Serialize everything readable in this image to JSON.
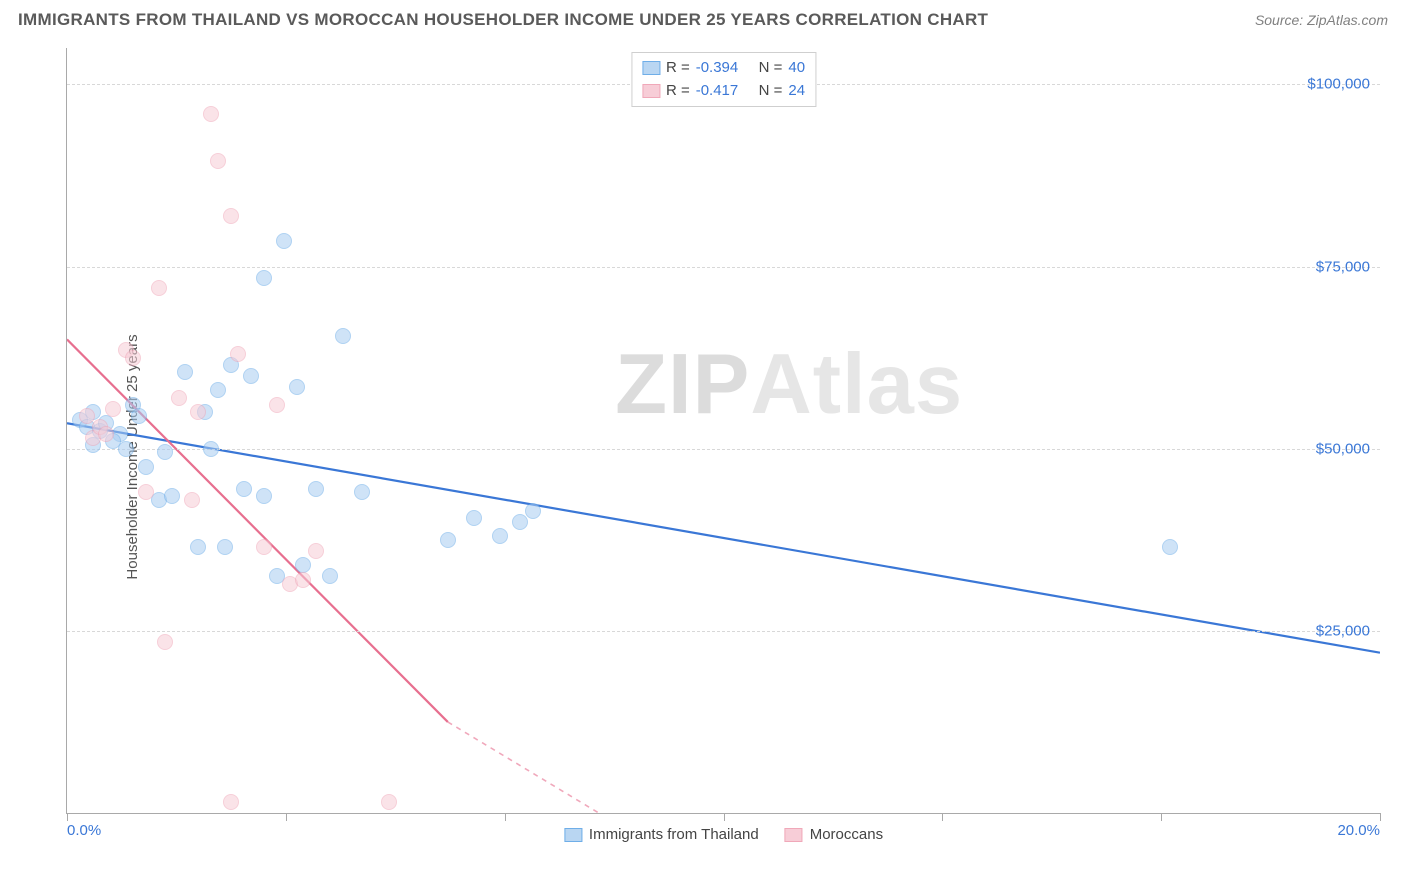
{
  "title": "IMMIGRANTS FROM THAILAND VS MOROCCAN HOUSEHOLDER INCOME UNDER 25 YEARS CORRELATION CHART",
  "source_label": "Source: ",
  "source_name": "ZipAtlas.com",
  "y_axis_label": "Householder Income Under 25 years",
  "watermark_a": "ZIP",
  "watermark_b": "Atlas",
  "chart": {
    "type": "scatter",
    "xlim": [
      0,
      20
    ],
    "ylim": [
      0,
      105000
    ],
    "y_ticks": [
      25000,
      50000,
      75000,
      100000
    ],
    "y_tick_labels": [
      "$25,000",
      "$50,000",
      "$75,000",
      "$100,000"
    ],
    "x_tick_positions": [
      0,
      3.33,
      6.67,
      10,
      13.33,
      16.67,
      20
    ],
    "x_min_label": "0.0%",
    "x_max_label": "20.0%",
    "grid_color": "#d8d8d8",
    "axis_color": "#a9a9a9",
    "background": "#ffffff",
    "series": [
      {
        "name": "Immigrants from Thailand",
        "color_fill": "#a9cdf2",
        "color_stroke": "#3a77d6",
        "r": -0.394,
        "n": 40,
        "trend": {
          "x1": 0,
          "y1": 53500,
          "x2": 20,
          "y2": 22000
        },
        "points": [
          [
            0.2,
            54000
          ],
          [
            0.3,
            53000
          ],
          [
            0.4,
            55000
          ],
          [
            0.5,
            52500
          ],
          [
            0.6,
            53500
          ],
          [
            0.4,
            50500
          ],
          [
            0.8,
            52000
          ],
          [
            0.9,
            50000
          ],
          [
            1.2,
            47500
          ],
          [
            1.0,
            56000
          ],
          [
            1.4,
            43000
          ],
          [
            1.6,
            43500
          ],
          [
            1.8,
            60500
          ],
          [
            2.0,
            36500
          ],
          [
            2.2,
            50000
          ],
          [
            2.3,
            58000
          ],
          [
            2.4,
            36500
          ],
          [
            2.5,
            61500
          ],
          [
            2.7,
            44500
          ],
          [
            2.8,
            60000
          ],
          [
            3.0,
            73500
          ],
          [
            3.0,
            43500
          ],
          [
            3.2,
            32500
          ],
          [
            3.3,
            78500
          ],
          [
            3.5,
            58500
          ],
          [
            3.6,
            34000
          ],
          [
            3.8,
            44500
          ],
          [
            4.0,
            32500
          ],
          [
            4.2,
            65500
          ],
          [
            4.5,
            44000
          ],
          [
            5.8,
            37500
          ],
          [
            6.2,
            40500
          ],
          [
            6.6,
            38000
          ],
          [
            6.9,
            40000
          ],
          [
            7.1,
            41500
          ],
          [
            16.8,
            36500
          ],
          [
            1.1,
            54500
          ],
          [
            0.7,
            51000
          ],
          [
            1.5,
            49500
          ],
          [
            2.1,
            55000
          ]
        ]
      },
      {
        "name": "Moroccans",
        "color_fill": "#f7cdd7",
        "color_stroke": "#e76f8f",
        "r": -0.417,
        "n": 24,
        "trend": {
          "x1": 0,
          "y1": 65000,
          "x2": 5.8,
          "y2": 12500
        },
        "trend_ext": {
          "x1": 5.8,
          "y1": 12500,
          "x2": 8.1,
          "y2": 0
        },
        "points": [
          [
            0.3,
            54500
          ],
          [
            0.4,
            51500
          ],
          [
            0.5,
            53000
          ],
          [
            0.7,
            55500
          ],
          [
            0.9,
            63500
          ],
          [
            1.0,
            62500
          ],
          [
            1.2,
            44000
          ],
          [
            1.4,
            72000
          ],
          [
            1.5,
            23500
          ],
          [
            1.7,
            57000
          ],
          [
            1.9,
            43000
          ],
          [
            2.0,
            55000
          ],
          [
            2.2,
            96000
          ],
          [
            2.3,
            89500
          ],
          [
            2.5,
            82000
          ],
          [
            2.5,
            1500
          ],
          [
            2.6,
            63000
          ],
          [
            3.0,
            36500
          ],
          [
            3.2,
            56000
          ],
          [
            3.4,
            31500
          ],
          [
            3.6,
            32000
          ],
          [
            3.8,
            36000
          ],
          [
            4.9,
            1500
          ],
          [
            0.6,
            52000
          ]
        ]
      }
    ]
  },
  "legend_top": {
    "r_label": "R =",
    "n_label": "N ="
  },
  "legend_bottom": {
    "series1": "Immigrants from Thailand",
    "series2": "Moroccans"
  }
}
